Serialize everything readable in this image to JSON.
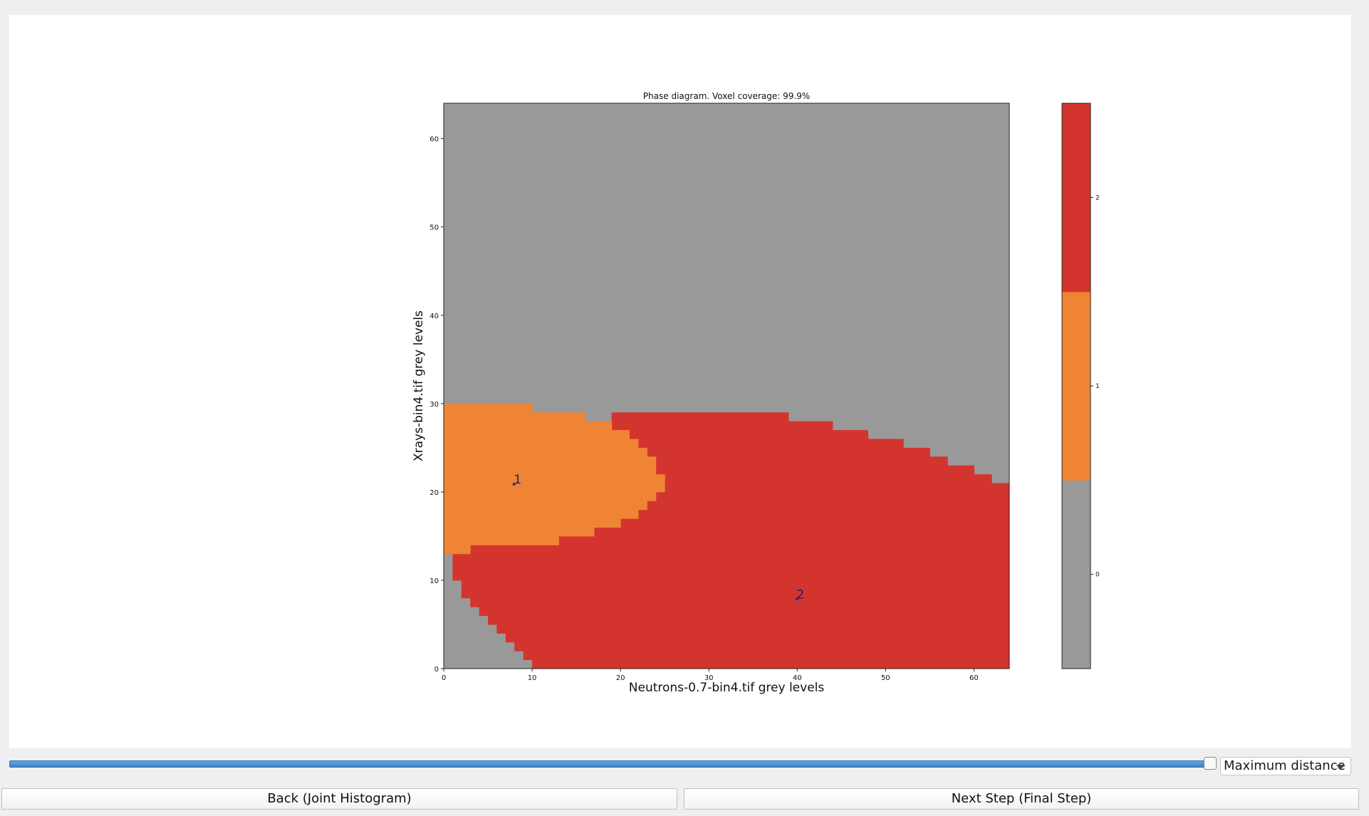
{
  "controls": {
    "slider_value_fraction": 1.0,
    "dropdown_value": "Maximum distance",
    "back_label": "Back (Joint Histogram)",
    "next_label": "Next Step (Final Step)"
  },
  "chart_data": {
    "type": "heatmap",
    "title": "Phase diagram. Voxel coverage: 99.9%",
    "xlabel": "Neutrons-0.7-bin4.tif grey levels",
    "ylabel": "Xrays-bin4.tif grey levels",
    "xlim": [
      0,
      64
    ],
    "ylim": [
      0,
      64
    ],
    "xticks": [
      "0",
      "10",
      "20",
      "30",
      "40",
      "50",
      "60"
    ],
    "yticks": [
      "0",
      "10",
      "20",
      "30",
      "40",
      "50",
      "60"
    ],
    "colorbar": {
      "ticks": [
        "0",
        "1",
        "2"
      ],
      "colors": [
        "#999999",
        "#ee8434",
        "#d3352e"
      ]
    },
    "phase_colors": {
      "background": "#999999",
      "phase_1": "#ee8434",
      "phase_2": "#d3352e"
    },
    "phase_1_region": {
      "rows_y": [
        13,
        14,
        15,
        16,
        17,
        18,
        19,
        20,
        21,
        22,
        23,
        24,
        25,
        26,
        27,
        28,
        29
      ],
      "right_x": [
        3,
        13,
        17,
        20,
        22,
        23,
        24,
        25,
        25,
        24,
        24,
        23,
        22,
        21,
        19,
        16,
        10
      ]
    },
    "phase_2_region": {
      "rows_y": [
        0,
        1,
        2,
        3,
        4,
        5,
        6,
        7,
        8,
        9,
        10,
        11,
        12,
        13,
        14,
        15,
        16,
        17,
        18,
        19,
        20,
        21,
        22,
        23,
        24,
        25,
        26,
        27,
        28
      ],
      "left_x": [
        10,
        9,
        8,
        7,
        6,
        5,
        4,
        3,
        2,
        2,
        1,
        1,
        1,
        3,
        13,
        17,
        20,
        22,
        23,
        24,
        25,
        25,
        24,
        24,
        23,
        22,
        21,
        19,
        19
      ],
      "right_x": [
        64,
        64,
        64,
        64,
        64,
        64,
        64,
        64,
        64,
        64,
        64,
        64,
        64,
        64,
        64,
        64,
        64,
        64,
        64,
        64,
        64,
        62,
        60,
        57,
        55,
        52,
        48,
        44,
        39
      ]
    },
    "annotations": [
      {
        "label": "1",
        "x": 8.2,
        "y": 21.2
      },
      {
        "label": "2",
        "x": 40.2,
        "y": 8.2
      }
    ]
  }
}
